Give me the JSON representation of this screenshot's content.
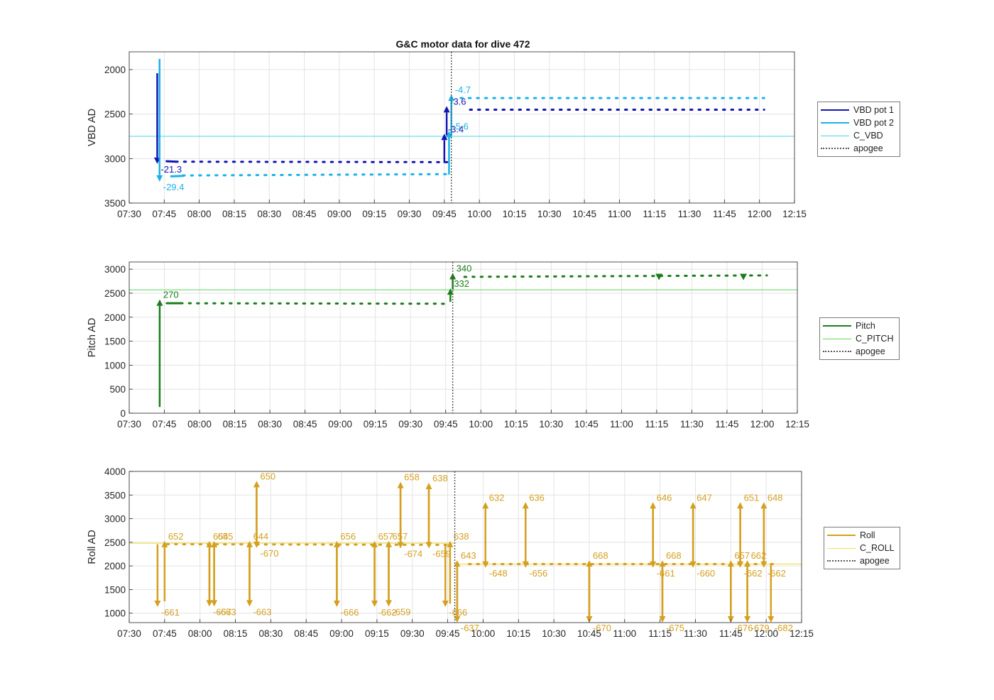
{
  "title": "G&C motor data for dive 472",
  "apogee": "09:48",
  "x_ticks": [
    "07:30",
    "07:45",
    "08:00",
    "08:15",
    "08:30",
    "08:45",
    "09:00",
    "09:15",
    "09:30",
    "09:45",
    "10:00",
    "10:15",
    "10:30",
    "10:45",
    "11:00",
    "11:15",
    "11:30",
    "11:45",
    "12:00",
    "12:15"
  ],
  "x_range": [
    "07:30",
    "12:15"
  ],
  "chart_data": [
    {
      "type": "line",
      "ylabel": "VBD AD",
      "ylim": [
        3500,
        1800
      ],
      "y_reversed": true,
      "y_ticks": [
        2000,
        2500,
        3000,
        3500
      ],
      "grid": true,
      "legend": [
        "VBD pot 1",
        "VBD pot 2",
        "C_VBD",
        "apogee"
      ],
      "colors": {
        "pot1": "#1414b4",
        "pot2": "#1ab2e8",
        "c_line": "#49d6e6",
        "apogee": "#555555"
      },
      "c_value": 2750,
      "series": [
        {
          "name": "VBD pot 1",
          "segments": [
            {
              "x": [
                "07:46",
                "07:50"
              ],
              "y": [
                3030,
                3035
              ]
            },
            {
              "x": [
                "07:50",
                "09:47"
              ],
              "y": [
                3035,
                3040
              ],
              "dotted": true
            },
            {
              "x": [
                "09:56",
                "12:02"
              ],
              "y": [
                2450,
                2450
              ],
              "dotted": true
            }
          ]
        },
        {
          "name": "VBD pot 2",
          "segments": [
            {
              "x": [
                "07:48",
                "07:53"
              ],
              "y": [
                3200,
                3195
              ]
            },
            {
              "x": [
                "07:53",
                "09:47"
              ],
              "y": [
                3190,
                3175
              ],
              "dotted": true
            },
            {
              "x": [
                "09:52",
                "12:02"
              ],
              "y": [
                2320,
                2320
              ],
              "dotted": true
            }
          ]
        }
      ],
      "arrows": [
        {
          "series": "VBD pot 1",
          "x": "07:42",
          "y_from": 2040,
          "y_to": 3060,
          "label": "-21.3"
        },
        {
          "series": "VBD pot 2",
          "x": "07:43",
          "y_from": 1880,
          "y_to": 3260,
          "label": "-29.4"
        },
        {
          "series": "VBD pot 1",
          "x": "09:45",
          "y_from": 3050,
          "y_to": 2720,
          "label": "-3.4"
        },
        {
          "series": "VBD pot 1",
          "x": "09:46",
          "y_from": 2740,
          "y_to": 2410,
          "label": "-3.6"
        },
        {
          "series": "VBD pot 2",
          "x": "09:47",
          "y_from": 3180,
          "y_to": 2690,
          "label": "-5.6"
        },
        {
          "series": "VBD pot 2",
          "x": "09:48",
          "y_from": 2740,
          "y_to": 2280,
          "label": "-4.7"
        }
      ]
    },
    {
      "type": "line",
      "ylabel": "Pitch AD",
      "ylim": [
        0,
        3150
      ],
      "y_ticks": [
        0,
        500,
        1000,
        1500,
        2000,
        2500,
        3000
      ],
      "grid": true,
      "legend": [
        "Pitch",
        "C_PITCH",
        "apogee"
      ],
      "colors": {
        "pitch": "#1a7d1a",
        "c_line": "#5fd65f",
        "apogee": "#555555"
      },
      "c_value": 2570,
      "series": [
        {
          "name": "Pitch",
          "segments": [
            {
              "x": [
                "07:46",
                "07:52"
              ],
              "y": [
                2290,
                2290
              ]
            },
            {
              "x": [
                "07:52",
                "09:45"
              ],
              "y": [
                2290,
                2280
              ],
              "dotted": true
            },
            {
              "x": [
                "09:53",
                "12:02"
              ],
              "y": [
                2840,
                2870
              ],
              "dotted": true
            }
          ]
        }
      ],
      "arrows": [
        {
          "series": "Pitch",
          "x": "07:43",
          "y_from": 130,
          "y_to": 2370,
          "label": "270"
        },
        {
          "series": "Pitch",
          "x": "09:47",
          "y_from": 2320,
          "y_to": 2600,
          "label": "332"
        },
        {
          "series": "Pitch",
          "x": "09:48",
          "y_from": 2580,
          "y_to": 2920,
          "label": "340"
        }
      ],
      "markers": [
        {
          "x": "11:16",
          "y": 2830
        },
        {
          "x": "11:52",
          "y": 2830
        }
      ]
    },
    {
      "type": "line",
      "ylabel": "Roll AD",
      "ylim": [
        800,
        4000
      ],
      "y_ticks": [
        1000,
        1500,
        2000,
        2500,
        3000,
        3500,
        4000
      ],
      "grid": true,
      "legend": [
        "Roll",
        "C_ROLL",
        "apogee"
      ],
      "colors": {
        "roll": "#d4a020",
        "c_line": "#f0e050",
        "apogee": "#555555"
      },
      "c_levels": [
        {
          "x": [
            "07:30",
            "09:48"
          ],
          "y": 2480
        },
        {
          "x": [
            "09:48",
            "12:15"
          ],
          "y": 2040
        }
      ],
      "series": [
        {
          "name": "Roll",
          "segments": [
            {
              "x": [
                "07:46",
                "09:46"
              ],
              "y": [
                2460,
                2445
              ],
              "dotted": true
            },
            {
              "x": [
                "09:54",
                "12:03"
              ],
              "y": [
                2040,
                2040
              ],
              "dotted": true
            }
          ]
        }
      ],
      "arrows": [
        {
          "x": "07:42",
          "y_from": 2460,
          "y_to": 1130,
          "label": "-661"
        },
        {
          "x": "07:45",
          "y_from": 1250,
          "y_to": 2530,
          "label": "652"
        },
        {
          "x": "08:04",
          "y_from": 2460,
          "y_to": 1140,
          "label": "-657"
        },
        {
          "x": "08:04",
          "y_from": 1220,
          "y_to": 2530,
          "label": "654"
        },
        {
          "x": "08:06",
          "y_from": 2440,
          "y_to": 1140,
          "label": "-663"
        },
        {
          "x": "08:06",
          "y_from": 1220,
          "y_to": 2530,
          "label": "655"
        },
        {
          "x": "08:21",
          "y_from": 2440,
          "y_to": 1140,
          "label": "-663"
        },
        {
          "x": "08:21",
          "y_from": 1200,
          "y_to": 2530,
          "label": "644"
        },
        {
          "x": "08:24",
          "y_from": 2460,
          "y_to": 3800,
          "label": "650"
        },
        {
          "x": "08:24",
          "y_from": 3660,
          "y_to": 2380,
          "label": "-670"
        },
        {
          "x": "08:58",
          "y_from": 2450,
          "y_to": 1130,
          "label": "-666"
        },
        {
          "x": "08:58",
          "y_from": 1200,
          "y_to": 2530,
          "label": "656"
        },
        {
          "x": "09:14",
          "y_from": 2450,
          "y_to": 1130,
          "label": "-662"
        },
        {
          "x": "09:14",
          "y_from": 1200,
          "y_to": 2530,
          "label": "657"
        },
        {
          "x": "09:20",
          "y_from": 2450,
          "y_to": 1140,
          "label": "-659"
        },
        {
          "x": "09:20",
          "y_from": 1200,
          "y_to": 2530,
          "label": "657"
        },
        {
          "x": "09:25",
          "y_from": 2450,
          "y_to": 3780,
          "label": "658"
        },
        {
          "x": "09:25",
          "y_from": 3700,
          "y_to": 2370,
          "label": "-674"
        },
        {
          "x": "09:37",
          "y_from": 2450,
          "y_to": 3760,
          "label": "638"
        },
        {
          "x": "09:37",
          "y_from": 3700,
          "y_to": 2370,
          "label": "-659"
        },
        {
          "x": "09:44",
          "y_from": 2450,
          "y_to": 1130,
          "label": "-666"
        },
        {
          "x": "09:46",
          "y_from": 1200,
          "y_to": 2530,
          "label": "638"
        },
        {
          "x": "09:49",
          "y_from": 2040,
          "y_to": 800,
          "label": "-637"
        },
        {
          "x": "09:49",
          "y_from": 870,
          "y_to": 2120,
          "label": "643"
        },
        {
          "x": "10:01",
          "y_from": 2040,
          "y_to": 3350,
          "label": "632"
        },
        {
          "x": "10:01",
          "y_from": 3270,
          "y_to": 1960,
          "label": "-648"
        },
        {
          "x": "10:18",
          "y_from": 2040,
          "y_to": 3350,
          "label": "636"
        },
        {
          "x": "10:18",
          "y_from": 3270,
          "y_to": 1960,
          "label": "-656"
        },
        {
          "x": "10:45",
          "y_from": 2040,
          "y_to": 800,
          "label": "-670"
        },
        {
          "x": "10:45",
          "y_from": 870,
          "y_to": 2120,
          "label": "668"
        },
        {
          "x": "11:12",
          "y_from": 2040,
          "y_to": 3350,
          "label": "646"
        },
        {
          "x": "11:12",
          "y_from": 3270,
          "y_to": 1960,
          "label": "-661"
        },
        {
          "x": "11:16",
          "y_from": 2040,
          "y_to": 800,
          "label": "-675"
        },
        {
          "x": "11:16",
          "y_from": 870,
          "y_to": 2120,
          "label": "668"
        },
        {
          "x": "11:29",
          "y_from": 2040,
          "y_to": 3350,
          "label": "647"
        },
        {
          "x": "11:29",
          "y_from": 3270,
          "y_to": 1960,
          "label": "-660"
        },
        {
          "x": "11:45",
          "y_from": 2040,
          "y_to": 800,
          "label": "-676"
        },
        {
          "x": "11:45",
          "y_from": 870,
          "y_to": 2120,
          "label": "657"
        },
        {
          "x": "11:49",
          "y_from": 2040,
          "y_to": 3350,
          "label": "651"
        },
        {
          "x": "11:49",
          "y_from": 3270,
          "y_to": 1960,
          "label": "-662"
        },
        {
          "x": "11:52",
          "y_from": 2040,
          "y_to": 800,
          "label": "-679"
        },
        {
          "x": "11:52",
          "y_from": 870,
          "y_to": 2120,
          "label": "662"
        },
        {
          "x": "11:59",
          "y_from": 2040,
          "y_to": 3350,
          "label": "648"
        },
        {
          "x": "11:59",
          "y_from": 3270,
          "y_to": 1960,
          "label": "-662"
        },
        {
          "x": "12:02",
          "y_from": 2040,
          "y_to": 800,
          "label": "-682"
        }
      ]
    }
  ]
}
